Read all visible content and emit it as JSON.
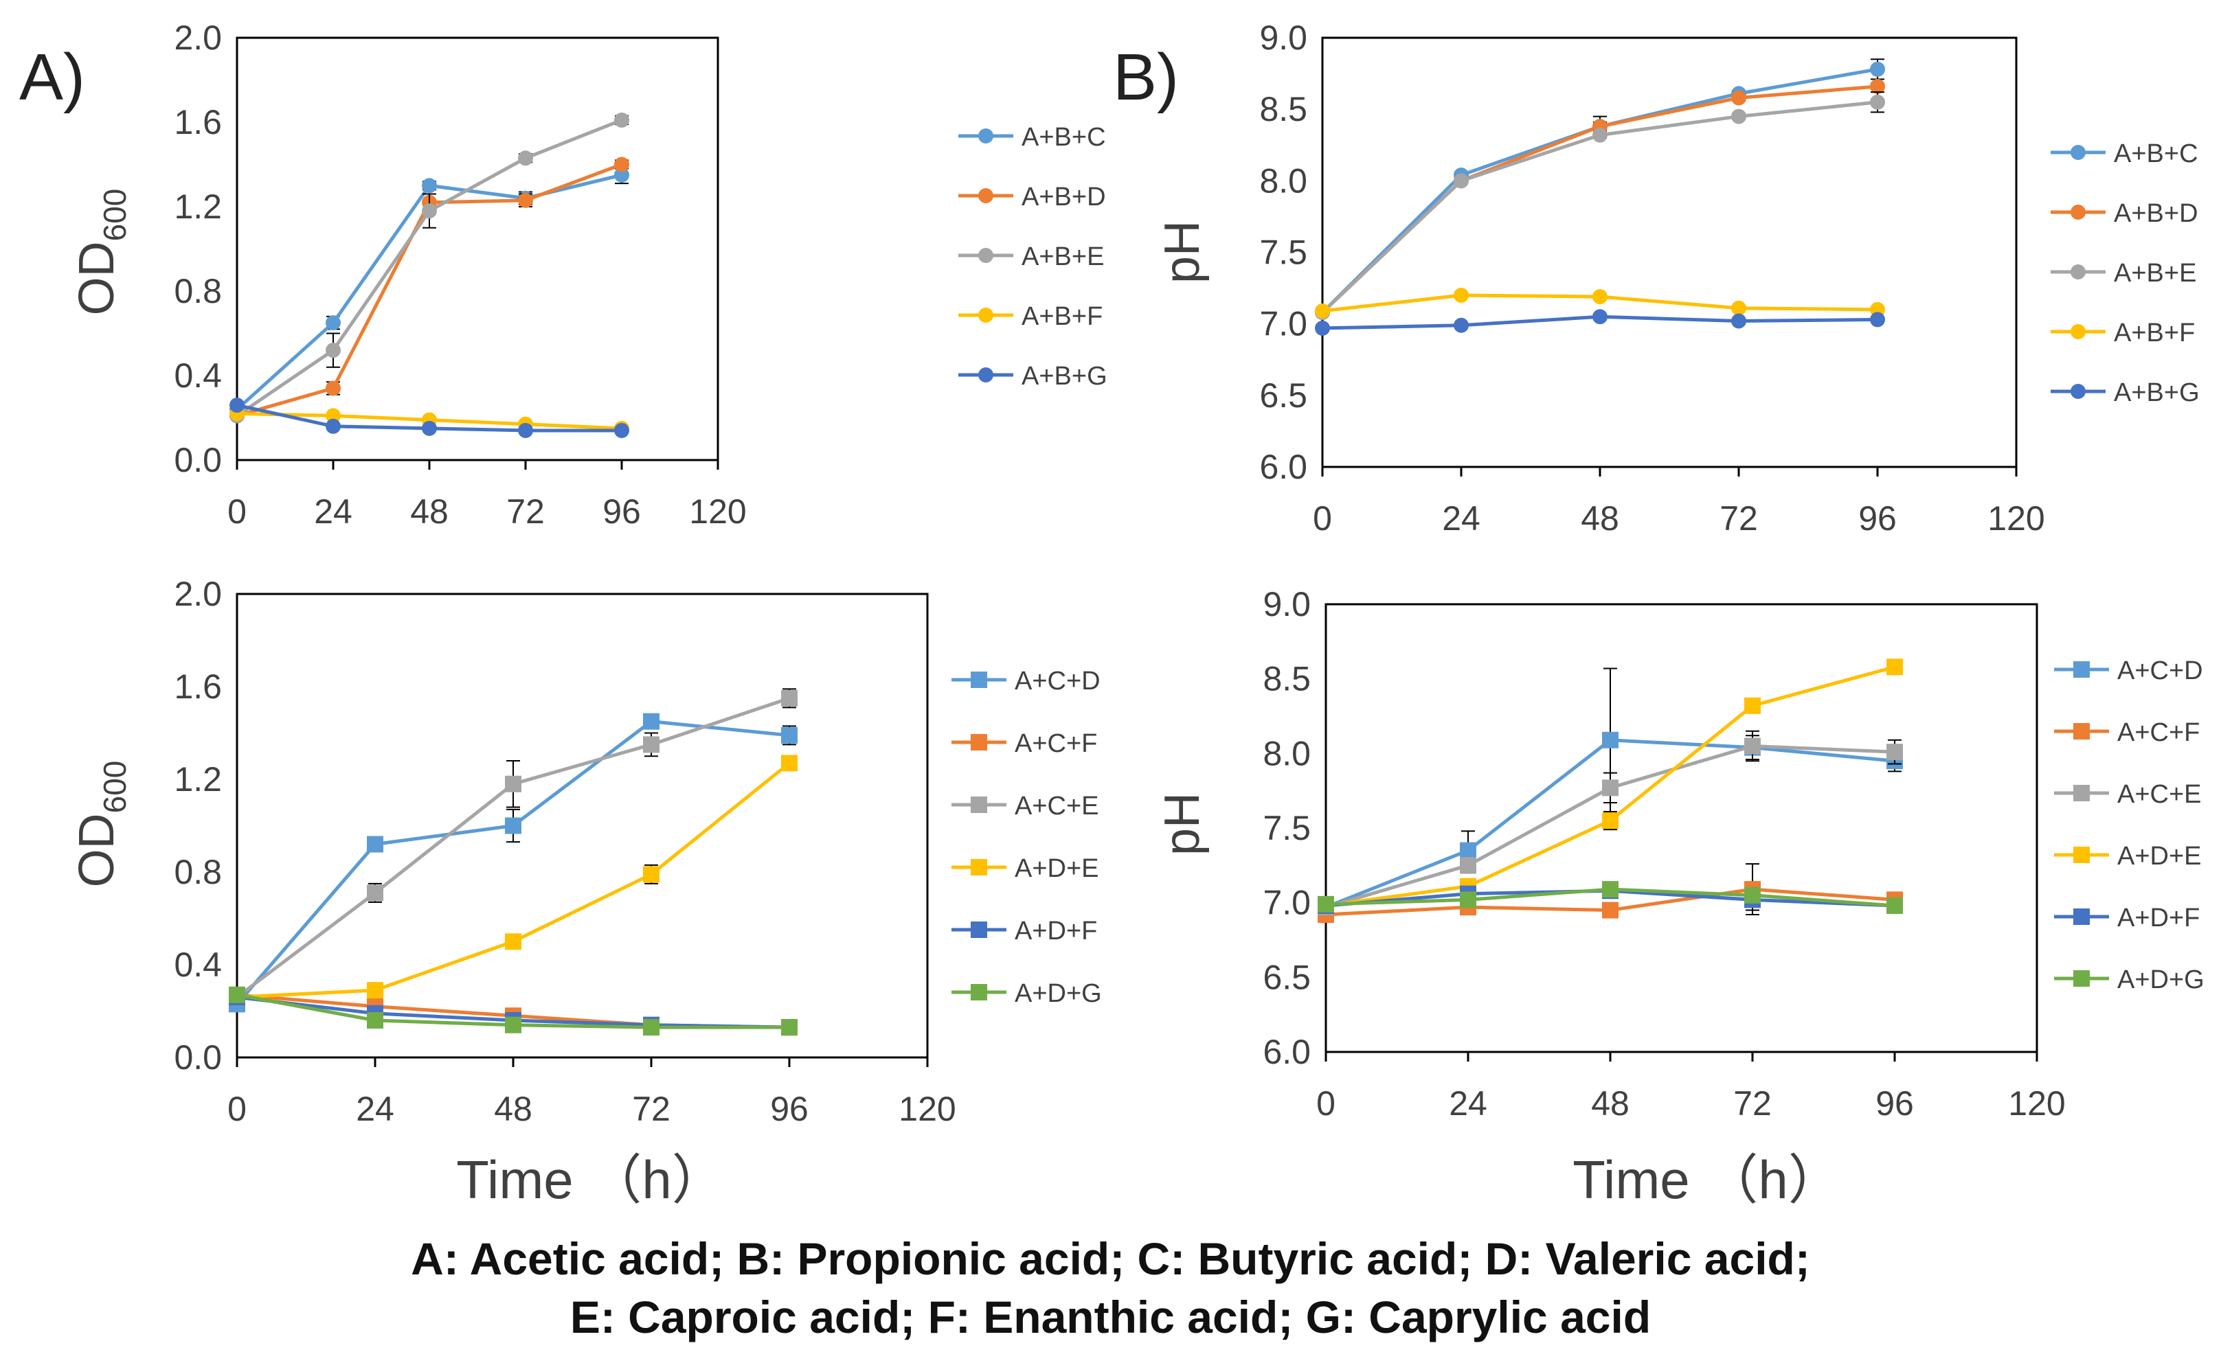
{
  "panel_labels": [
    "A)",
    "B)"
  ],
  "x_title": "Time （h）",
  "footnote": {
    "line1": "A: Acetic acid; B: Propionic acid; C: Butyric acid; D: Valeric acid;",
    "line2": "E: Caproic acid; F: Enanthic acid; G: Caprylic acid"
  },
  "colors": {
    "blue_light": "#5B9BD5",
    "orange": "#ED7D31",
    "gray": "#A5A5A5",
    "yellow": "#FFC000",
    "blue_dark": "#4472C4",
    "green": "#70AD47"
  },
  "chart_data": [
    {
      "type": "line",
      "panel": "A",
      "marker": "circle",
      "ylabel": "OD",
      "ylabel_subscript": "600",
      "xlim": [
        0,
        120
      ],
      "ylim": [
        0,
        2.0
      ],
      "x_ticks": [
        "0",
        "24",
        "48",
        "72",
        "96",
        "120"
      ],
      "y_ticks": [
        "0.0",
        "0.4",
        "0.8",
        "1.2",
        "1.6",
        "2.0"
      ],
      "x": [
        0,
        24,
        48,
        72,
        96
      ],
      "series": [
        {
          "name": "A+B+C",
          "color": "#5B9BD5",
          "values": [
            0.24,
            0.65,
            1.3,
            1.24,
            1.35
          ],
          "errors": [
            0.01,
            0.03,
            0.02,
            0.03,
            0.04
          ]
        },
        {
          "name": "A+B+D",
          "color": "#ED7D31",
          "values": [
            0.21,
            0.34,
            1.22,
            1.23,
            1.4
          ],
          "errors": [
            0.01,
            0.03,
            0.04,
            0.03,
            0.02
          ]
        },
        {
          "name": "A+B+E",
          "color": "#A5A5A5",
          "values": [
            0.21,
            0.52,
            1.18,
            1.43,
            1.61
          ],
          "errors": [
            0.01,
            0.08,
            0.08,
            0.02,
            0.02
          ]
        },
        {
          "name": "A+B+F",
          "color": "#FFC000",
          "values": [
            0.22,
            0.21,
            0.19,
            0.17,
            0.15
          ],
          "errors": [
            0.01,
            0.01,
            0.01,
            0.01,
            0.01
          ]
        },
        {
          "name": "A+B+G",
          "color": "#4472C4",
          "values": [
            0.26,
            0.16,
            0.15,
            0.14,
            0.14
          ],
          "errors": [
            0.01,
            0.01,
            0.01,
            0.01,
            0.01
          ]
        }
      ]
    },
    {
      "type": "line",
      "panel": "B",
      "marker": "circle",
      "ylabel": "pH",
      "ylabel_subscript": "",
      "xlim": [
        0,
        120
      ],
      "ylim": [
        6.0,
        9.0
      ],
      "x_ticks": [
        "0",
        "24",
        "48",
        "72",
        "96",
        "120"
      ],
      "y_ticks": [
        "6.0",
        "6.5",
        "7.0",
        "7.5",
        "8.0",
        "8.5",
        "9.0"
      ],
      "x": [
        0,
        24,
        48,
        72,
        96
      ],
      "series": [
        {
          "name": "A+B+C",
          "color": "#5B9BD5",
          "values": [
            7.08,
            8.04,
            8.38,
            8.61,
            8.78
          ],
          "errors": [
            0.01,
            0.02,
            0.03,
            0.02,
            0.07
          ]
        },
        {
          "name": "A+B+D",
          "color": "#ED7D31",
          "values": [
            7.08,
            8.0,
            8.38,
            8.58,
            8.66
          ],
          "errors": [
            0.01,
            0.02,
            0.07,
            0.02,
            0.02
          ]
        },
        {
          "name": "A+B+E",
          "color": "#A5A5A5",
          "values": [
            7.08,
            8.0,
            8.32,
            8.45,
            8.55
          ],
          "errors": [
            0.01,
            0.02,
            0.02,
            0.02,
            0.07
          ]
        },
        {
          "name": "A+B+F",
          "color": "#FFC000",
          "values": [
            7.09,
            7.2,
            7.19,
            7.11,
            7.1
          ],
          "errors": [
            0.01,
            0.01,
            0.01,
            0.01,
            0.01
          ]
        },
        {
          "name": "A+B+G",
          "color": "#4472C4",
          "values": [
            6.97,
            6.99,
            7.05,
            7.02,
            7.03
          ],
          "errors": [
            0.01,
            0.01,
            0.01,
            0.01,
            0.01
          ]
        }
      ]
    },
    {
      "type": "line",
      "panel": "A",
      "marker": "square",
      "ylabel": "OD",
      "ylabel_subscript": "600",
      "xlim": [
        0,
        120
      ],
      "ylim": [
        0,
        2.0
      ],
      "x_ticks": [
        "0",
        "24",
        "48",
        "72",
        "96",
        "120"
      ],
      "y_ticks": [
        "0.0",
        "0.4",
        "0.8",
        "1.2",
        "1.6",
        "2.0"
      ],
      "x": [
        0,
        24,
        48,
        72,
        96
      ],
      "series": [
        {
          "name": "A+C+D",
          "color": "#5B9BD5",
          "values": [
            0.23,
            0.92,
            1.0,
            1.45,
            1.39
          ],
          "errors": [
            0.01,
            0.03,
            0.07,
            0.03,
            0.04
          ]
        },
        {
          "name": "A+C+F",
          "color": "#ED7D31",
          "values": [
            0.27,
            0.22,
            0.18,
            0.14,
            0.13
          ],
          "errors": [
            0.01,
            0.01,
            0.02,
            0.01,
            0.01
          ]
        },
        {
          "name": "A+C+E",
          "color": "#A5A5A5",
          "values": [
            0.26,
            0.71,
            1.18,
            1.35,
            1.55
          ],
          "errors": [
            0.01,
            0.04,
            0.1,
            0.05,
            0.04
          ]
        },
        {
          "name": "A+D+E",
          "color": "#FFC000",
          "values": [
            0.26,
            0.29,
            0.5,
            0.79,
            1.27
          ],
          "errors": [
            0.01,
            0.01,
            0.03,
            0.04,
            0.02
          ]
        },
        {
          "name": "A+D+F",
          "color": "#4472C4",
          "values": [
            0.26,
            0.19,
            0.16,
            0.14,
            0.13
          ],
          "errors": [
            0.01,
            0.01,
            0.01,
            0.01,
            0.01
          ]
        },
        {
          "name": "A+D+G",
          "color": "#70AD47",
          "values": [
            0.27,
            0.16,
            0.14,
            0.13,
            0.13
          ],
          "errors": [
            0.01,
            0.01,
            0.01,
            0.01,
            0.01
          ]
        }
      ]
    },
    {
      "type": "line",
      "panel": "B",
      "marker": "square",
      "ylabel": "pH",
      "ylabel_subscript": "",
      "xlim": [
        0,
        120
      ],
      "ylim": [
        6.0,
        9.0
      ],
      "x_ticks": [
        "0",
        "24",
        "48",
        "72",
        "96",
        "120"
      ],
      "y_ticks": [
        "6.0",
        "6.5",
        "7.0",
        "7.5",
        "8.0",
        "8.5",
        "9.0"
      ],
      "x": [
        0,
        24,
        48,
        72,
        96
      ],
      "series": [
        {
          "name": "A+C+D",
          "color": "#5B9BD5",
          "values": [
            6.97,
            7.35,
            8.09,
            8.04,
            7.95
          ],
          "errors": [
            0.01,
            0.13,
            0.48,
            0.08,
            0.07
          ]
        },
        {
          "name": "A+C+F",
          "color": "#ED7D31",
          "values": [
            6.92,
            6.97,
            6.95,
            7.09,
            7.02
          ],
          "errors": [
            0.01,
            0.02,
            0.03,
            0.17,
            0.03
          ]
        },
        {
          "name": "A+C+E",
          "color": "#A5A5A5",
          "values": [
            6.97,
            7.25,
            7.77,
            8.05,
            8.01
          ],
          "errors": [
            0.01,
            0.05,
            0.1,
            0.1,
            0.08
          ]
        },
        {
          "name": "A+D+E",
          "color": "#FFC000",
          "values": [
            6.98,
            7.11,
            7.55,
            8.32,
            8.58
          ],
          "errors": [
            0.01,
            0.02,
            0.06,
            0.02,
            0.02
          ]
        },
        {
          "name": "A+D+F",
          "color": "#4472C4",
          "values": [
            6.98,
            7.06,
            7.08,
            7.02,
            6.98
          ],
          "errors": [
            0.01,
            0.02,
            0.02,
            0.07,
            0.02
          ]
        },
        {
          "name": "A+D+G",
          "color": "#70AD47",
          "values": [
            6.99,
            7.02,
            7.09,
            7.05,
            6.98
          ],
          "errors": [
            0.01,
            0.01,
            0.02,
            0.02,
            0.02
          ]
        }
      ]
    }
  ]
}
